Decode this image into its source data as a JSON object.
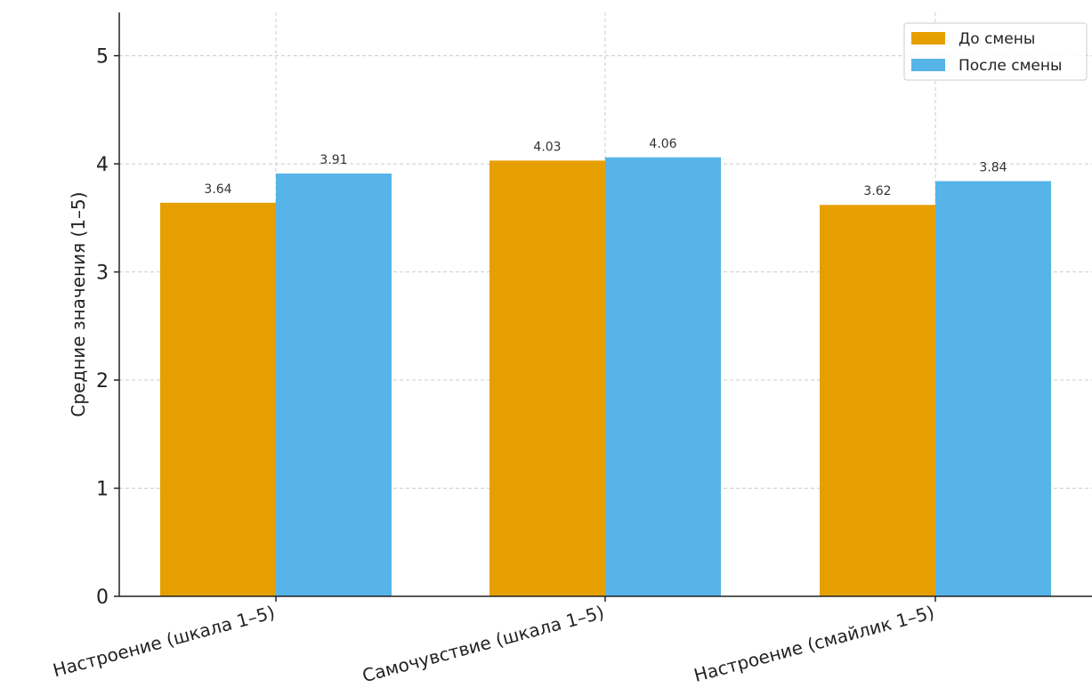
{
  "chart_data": {
    "type": "bar",
    "categories": [
      "Настроение (шкала 1–5)",
      "Самочувствие (шкала 1–5)",
      "Настроение (смайлик 1–5)"
    ],
    "series": [
      {
        "name": "До смены",
        "values": [
          3.64,
          4.03,
          3.62
        ],
        "color": "#E69F00"
      },
      {
        "name": "После смены",
        "values": [
          3.91,
          4.06,
          3.84
        ],
        "color": "#56B4E9"
      }
    ],
    "ylabel": "Средние значения (1–5)",
    "xlabel": "",
    "ylim": [
      0,
      5.4
    ],
    "yticks": [
      0,
      1,
      2,
      3,
      4,
      5
    ],
    "grid": true,
    "legend": "top-right"
  }
}
